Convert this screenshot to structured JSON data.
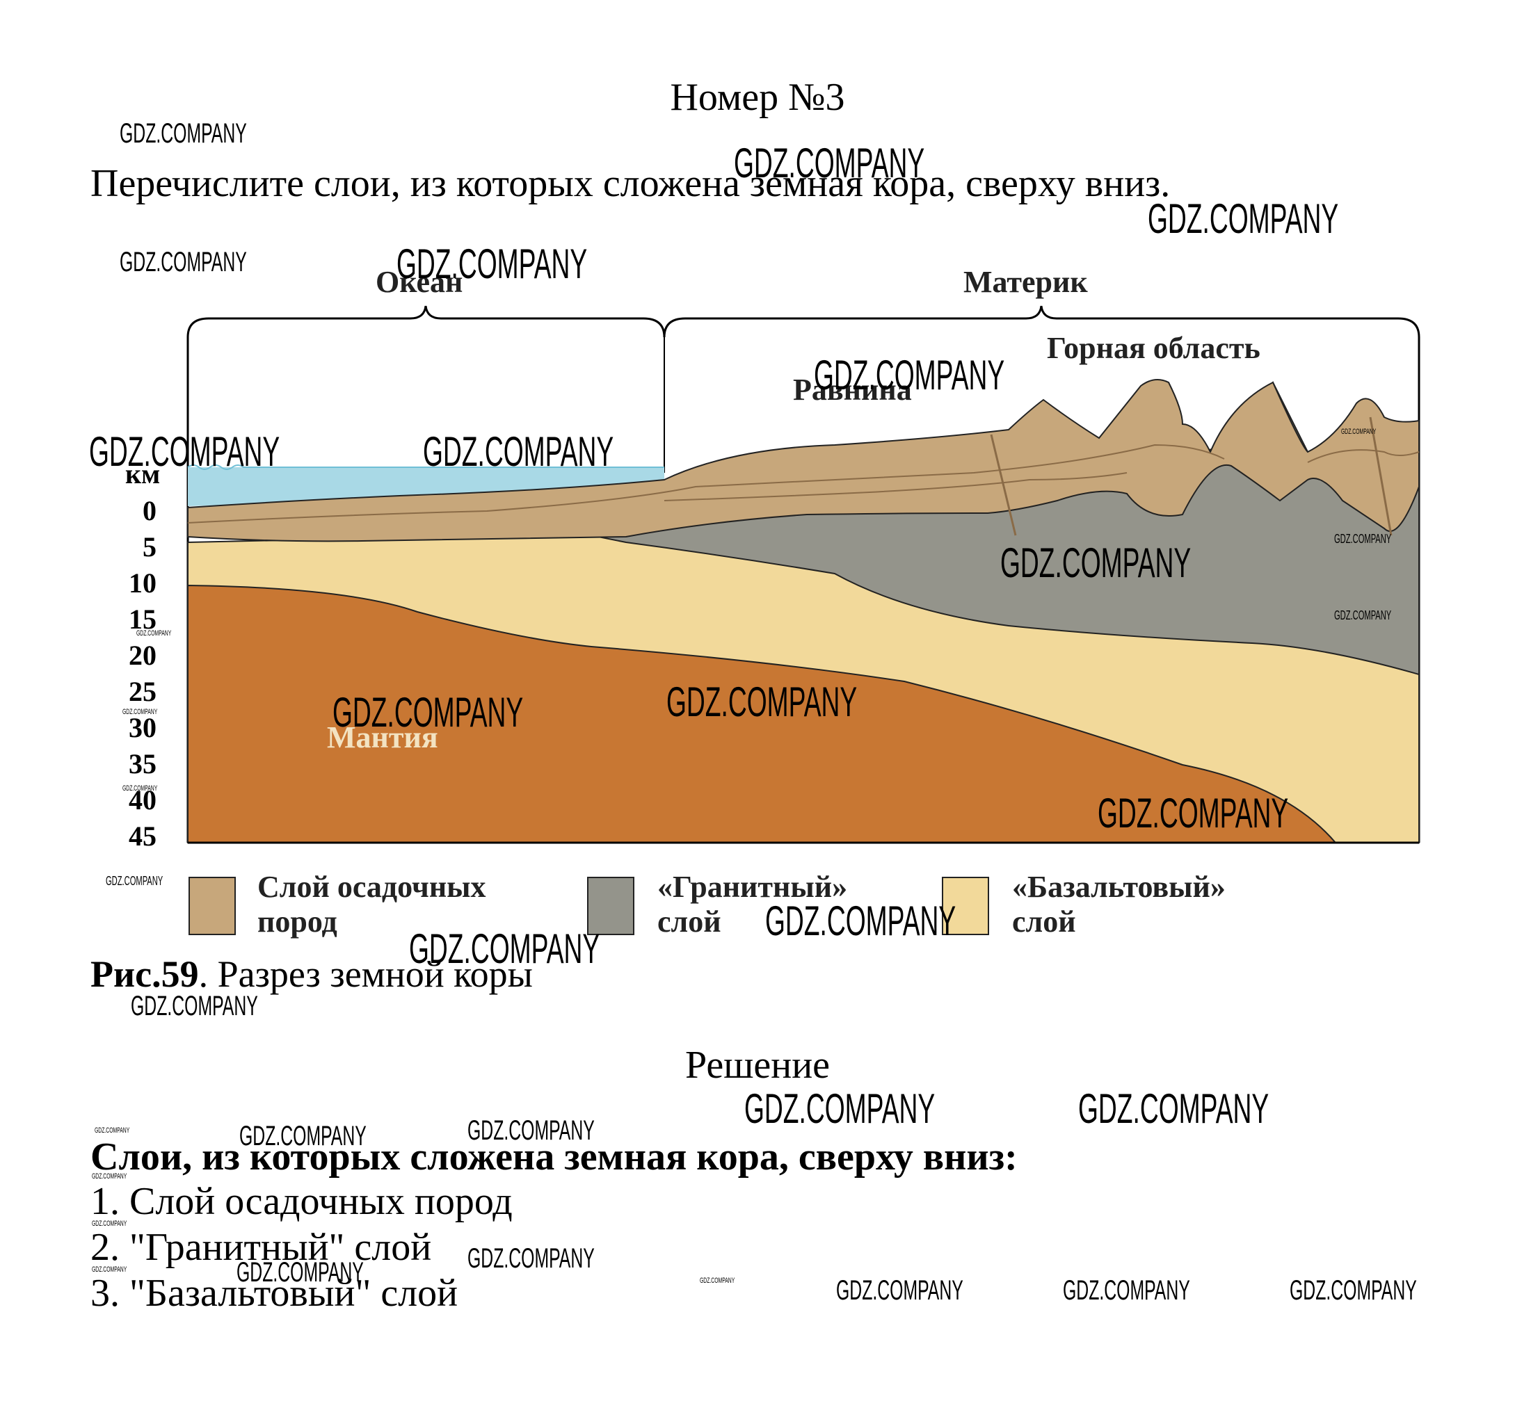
{
  "header": {
    "title": "Номер №3"
  },
  "task": {
    "text": "Перечислите слои, из которых сложена земная кора, сверху вниз."
  },
  "figure": {
    "region_ocean": "Океан",
    "region_continent": "Материк",
    "label_mountains": "Горная область",
    "label_plain": "Равнина",
    "label_mantle": "Мантия",
    "axis_unit": "км",
    "depth_ticks": [
      "0",
      "5",
      "10",
      "15",
      "20",
      "25",
      "30",
      "35",
      "40",
      "45"
    ],
    "legend": [
      {
        "line1": "Слой осадочных",
        "line2": "пород",
        "color": "#c7a77b"
      },
      {
        "line1": "«Гранитный»",
        "line2": "слой",
        "color": "#94948b"
      },
      {
        "line1": "«Базальтовый»",
        "line2": "слой",
        "color": "#f2d99a"
      }
    ],
    "colors": {
      "water": "#a9d9e6",
      "mantle": "#c87733",
      "sediment": "#c7a77b",
      "granite": "#94948b",
      "basalt": "#f2d99a"
    }
  },
  "caption": {
    "number": "Рис.59",
    "text": ". Разрез земной коры"
  },
  "solution": {
    "title": "Решение",
    "heading": "Слои, из которых сложена земная кора, сверху вниз:",
    "items": [
      "1. Слой осадочных пород",
      "2. \"Гранитный\" слой",
      "3. \"Базальтовый\" слой"
    ]
  },
  "watermark": {
    "text": "GDZ.COMPANY"
  }
}
